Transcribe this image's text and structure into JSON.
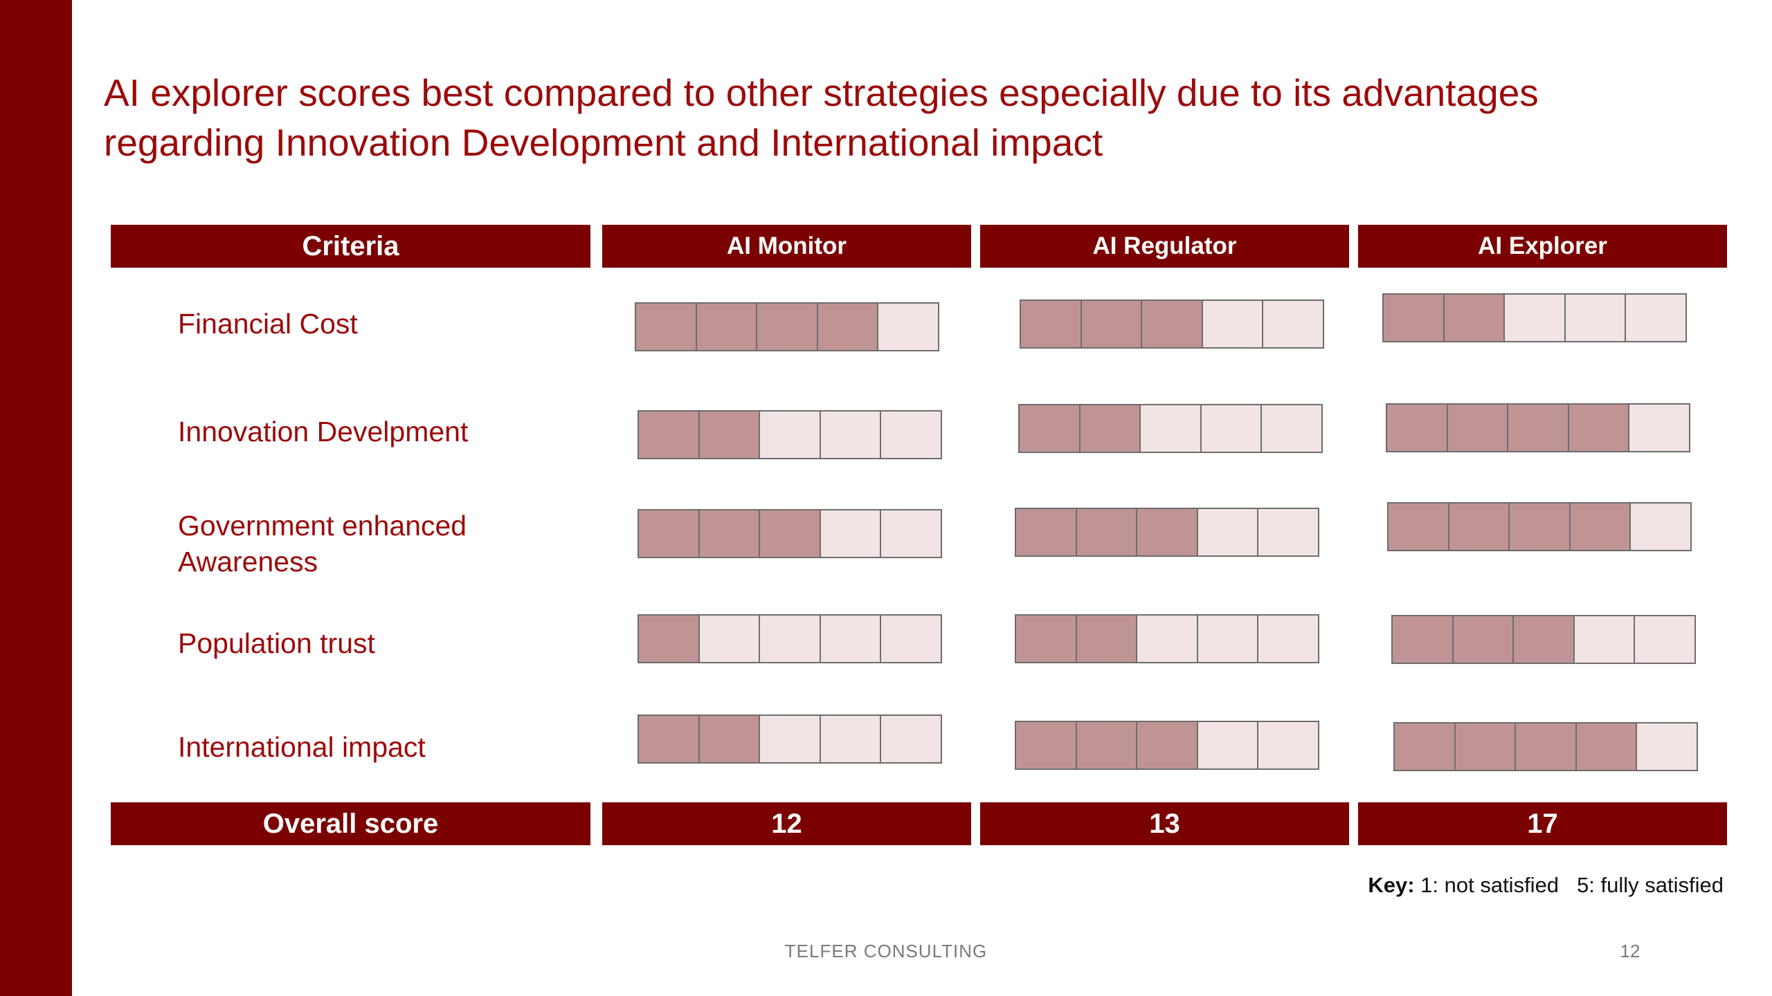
{
  "title_lines": [
    "AI explorer scores best compared to other strategies especially due to its advantages",
    "regarding Innovation Development and International impact"
  ],
  "colors": {
    "accent": "#7b0000",
    "title_text": "#9b0a0a",
    "filled_cell": "#c09494",
    "empty_cell": "#f2e4e4"
  },
  "table": {
    "criteria_header": "Criteria",
    "strategies": [
      "AI Monitor",
      "AI Regulator",
      "AI Explorer"
    ],
    "max_score": 5,
    "rows": [
      {
        "label_lines": [
          "Financial Cost"
        ],
        "scores": [
          4,
          3,
          2
        ]
      },
      {
        "label_lines": [
          "Innovation Develpment"
        ],
        "scores": [
          2,
          2,
          4
        ]
      },
      {
        "label_lines": [
          "Government enhanced",
          "Awareness"
        ],
        "scores": [
          3,
          3,
          4
        ]
      },
      {
        "label_lines": [
          "Population trust"
        ],
        "scores": [
          1,
          2,
          3
        ]
      },
      {
        "label_lines": [
          "International impact"
        ],
        "scores": [
          2,
          3,
          4
        ]
      }
    ],
    "overall_label": "Overall score",
    "overall_scores": [
      "12",
      "13",
      "17"
    ]
  },
  "key": {
    "label": "Key:",
    "low": "1: not satisfied",
    "high": "5: fully satisfied"
  },
  "footer": {
    "company": "TELFER CONSULTING",
    "page_number": "12"
  }
}
